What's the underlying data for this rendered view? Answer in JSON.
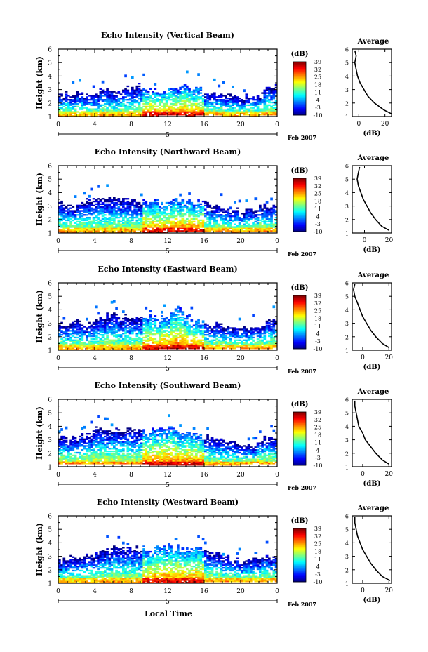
{
  "figure": {
    "xlabel": "Local Time",
    "date_label": "Feb 2007",
    "day_label": "5",
    "ylabel": "Height (km)",
    "colorbar_unit": "(dB)",
    "average_title": "Average",
    "average_xlabel": "(dB)"
  },
  "chart_data": [
    {
      "type": "heatmap",
      "title": "Echo Intensity (Vertical Beam)",
      "xlabel": "",
      "ylabel": "Height (km)",
      "xlim": [
        0,
        24
      ],
      "ylim": [
        1,
        6
      ],
      "x_ticks": [
        "0",
        "4",
        "8",
        "12",
        "16",
        "20",
        "0"
      ],
      "y_ticks": [
        "1",
        "2",
        "3",
        "4",
        "5",
        "6"
      ],
      "colorbar": {
        "label": "(dB)",
        "ticks": [
          "-10",
          "-3",
          "4",
          "11",
          "18",
          "25",
          "32",
          "39"
        ]
      },
      "echo_top_km": [
        2.6,
        2.7,
        2.7,
        2.6,
        2.8,
        3.0,
        2.9,
        3.1,
        3.2,
        3.3,
        3.0,
        2.9,
        3.1,
        3.2,
        3.2,
        3.1,
        2.9,
        2.7,
        2.6,
        2.5,
        2.4,
        2.6,
        2.5,
        3.2
      ],
      "echo_base_km": [
        1.0,
        1.0,
        1.0,
        1.0,
        1.0,
        1.0,
        1.0,
        1.0,
        1.0,
        1.0,
        1.0,
        1.1,
        1.1,
        1.1,
        1.0,
        1.1,
        1.1,
        1.1,
        1.0,
        1.0,
        1.1,
        1.0,
        1.1,
        1.1
      ],
      "average": {
        "title": "Average",
        "xlabel": "(dB)",
        "xlim": [
          -5,
          25
        ],
        "x_ticks": [
          "0",
          "20"
        ],
        "ylim": [
          1,
          6
        ],
        "height_km": [
          1.2,
          1.5,
          2.0,
          2.5,
          3.0,
          3.5,
          4.0,
          4.5,
          5.0,
          5.5,
          5.9
        ],
        "value_db": [
          25,
          19,
          12,
          7,
          4,
          1,
          -1,
          -2,
          -3,
          -2,
          -3
        ]
      }
    },
    {
      "type": "heatmap",
      "title": "Echo Intensity (Northward Beam)",
      "xlabel": "",
      "ylabel": "Height (km)",
      "xlim": [
        0,
        24
      ],
      "ylim": [
        1,
        6
      ],
      "x_ticks": [
        "0",
        "4",
        "8",
        "12",
        "16",
        "20",
        "0"
      ],
      "y_ticks": [
        "1",
        "2",
        "3",
        "4",
        "5",
        "6"
      ],
      "colorbar": {
        "label": "(dB)",
        "ticks": [
          "-10",
          "-3",
          "4",
          "11",
          "18",
          "25",
          "32",
          "39"
        ]
      },
      "echo_top_km": [
        3.2,
        3.1,
        2.9,
        3.4,
        3.5,
        3.6,
        3.7,
        3.6,
        3.5,
        3.4,
        3.3,
        3.3,
        3.4,
        3.5,
        3.4,
        3.3,
        3.2,
        3.0,
        3.0,
        2.8,
        2.6,
        2.8,
        3.0,
        3.2
      ],
      "echo_base_km": [
        1.0,
        1.0,
        1.0,
        1.0,
        1.0,
        1.0,
        1.0,
        1.0,
        1.0,
        1.0,
        1.0,
        1.0,
        1.1,
        1.1,
        1.1,
        1.1,
        1.1,
        1.1,
        1.1,
        1.0,
        1.1,
        1.1,
        1.1,
        1.1
      ],
      "average": {
        "title": "Average",
        "xlabel": "(dB)",
        "xlim": [
          -10,
          22
        ],
        "x_ticks": [
          "0",
          "20"
        ],
        "ylim": [
          1,
          6
        ],
        "height_km": [
          1.2,
          1.5,
          2.0,
          2.5,
          3.0,
          3.5,
          4.0,
          4.5,
          5.0,
          5.5,
          5.9
        ],
        "value_db": [
          20,
          14,
          9,
          5,
          2,
          -1,
          -3,
          -5,
          -6,
          -5,
          -4
        ]
      }
    },
    {
      "type": "heatmap",
      "title": "Echo Intensity (Eastward Beam)",
      "xlabel": "",
      "ylabel": "Height (km)",
      "xlim": [
        0,
        24
      ],
      "ylim": [
        1,
        6
      ],
      "x_ticks": [
        "0",
        "4",
        "8",
        "12",
        "16",
        "20",
        "0"
      ],
      "y_ticks": [
        "1",
        "2",
        "3",
        "4",
        "5",
        "6"
      ],
      "colorbar": {
        "label": "(dB)",
        "ticks": [
          "-10",
          "-3",
          "4",
          "11",
          "18",
          "25",
          "32",
          "39"
        ]
      },
      "echo_top_km": [
        2.8,
        3.0,
        3.1,
        2.9,
        3.2,
        3.5,
        3.6,
        3.5,
        3.4,
        3.6,
        3.5,
        3.3,
        3.6,
        4.3,
        3.4,
        3.1,
        3.0,
        2.9,
        2.8,
        2.7,
        2.6,
        2.7,
        2.9,
        3.1
      ],
      "echo_base_km": [
        1.0,
        1.0,
        1.0,
        1.0,
        1.0,
        1.0,
        1.0,
        1.0,
        1.0,
        1.0,
        1.0,
        1.1,
        1.1,
        1.1,
        1.1,
        1.1,
        1.1,
        1.1,
        1.1,
        1.1,
        1.1,
        1.1,
        1.1,
        1.1
      ],
      "average": {
        "title": "Average",
        "xlabel": "(dB)",
        "xlim": [
          -8,
          22
        ],
        "x_ticks": [
          "0",
          "20"
        ],
        "ylim": [
          1,
          6
        ],
        "height_km": [
          1.2,
          1.5,
          2.0,
          2.5,
          3.0,
          3.5,
          4.0,
          4.5,
          5.0,
          5.5,
          5.9
        ],
        "value_db": [
          20,
          15,
          10,
          6,
          3,
          0,
          -2,
          -4,
          -6,
          -7,
          -6
        ]
      }
    },
    {
      "type": "heatmap",
      "title": "Echo Intensity (Southward Beam)",
      "xlabel": "",
      "ylabel": "Height (km)",
      "xlim": [
        0,
        24
      ],
      "ylim": [
        1,
        6
      ],
      "x_ticks": [
        "0",
        "4",
        "8",
        "12",
        "16",
        "20",
        "0"
      ],
      "y_ticks": [
        "1",
        "2",
        "3",
        "4",
        "5",
        "6"
      ],
      "colorbar": {
        "label": "(dB)",
        "ticks": [
          "-10",
          "-3",
          "4",
          "11",
          "18",
          "25",
          "32",
          "39"
        ]
      },
      "echo_top_km": [
        3.0,
        3.1,
        3.2,
        3.4,
        3.8,
        3.8,
        3.7,
        3.8,
        3.7,
        3.6,
        3.6,
        3.8,
        3.9,
        3.7,
        3.5,
        3.4,
        3.3,
        3.1,
        2.8,
        2.7,
        2.6,
        2.5,
        2.9,
        3.2
      ],
      "echo_base_km": [
        1.2,
        1.2,
        1.2,
        1.2,
        1.2,
        1.2,
        1.2,
        1.2,
        1.2,
        1.2,
        1.1,
        1.1,
        1.1,
        1.1,
        1.1,
        1.1,
        1.1,
        1.1,
        1.1,
        1.1,
        1.2,
        1.2,
        1.2,
        1.2
      ],
      "average": {
        "title": "Average",
        "xlabel": "(dB)",
        "xlim": [
          -8,
          22
        ],
        "x_ticks": [
          "0",
          "20"
        ],
        "ylim": [
          1,
          6
        ],
        "height_km": [
          1.2,
          1.5,
          2.0,
          2.5,
          3.0,
          3.5,
          4.0,
          4.5,
          5.0,
          5.5,
          5.9
        ],
        "value_db": [
          20,
          15,
          10,
          6,
          2,
          0,
          -3,
          -4,
          -5,
          -6,
          -6
        ]
      }
    },
    {
      "type": "heatmap",
      "title": "Echo Intensity (Westward Beam)",
      "xlabel": "Local Time",
      "ylabel": "Height (km)",
      "xlim": [
        0,
        24
      ],
      "ylim": [
        1,
        6
      ],
      "x_ticks": [
        "0",
        "4",
        "8",
        "12",
        "16",
        "20",
        "0"
      ],
      "y_ticks": [
        "1",
        "2",
        "3",
        "4",
        "5",
        "6"
      ],
      "colorbar": {
        "label": "(dB)",
        "ticks": [
          "-10",
          "-3",
          "4",
          "11",
          "18",
          "25",
          "32",
          "39"
        ]
      },
      "echo_top_km": [
        2.7,
        2.8,
        3.0,
        3.1,
        3.2,
        3.5,
        3.6,
        3.7,
        3.6,
        3.6,
        3.5,
        3.6,
        3.8,
        3.7,
        3.5,
        3.6,
        3.4,
        3.2,
        3.0,
        2.8,
        2.6,
        2.7,
        2.9,
        3.0
      ],
      "echo_base_km": [
        1.0,
        1.0,
        1.0,
        1.0,
        1.0,
        1.0,
        1.0,
        1.0,
        1.0,
        1.0,
        1.0,
        1.0,
        1.0,
        1.0,
        1.0,
        1.0,
        1.1,
        1.1,
        1.1,
        1.1,
        1.1,
        1.1,
        1.1,
        1.1
      ],
      "average": {
        "title": "Average",
        "xlabel": "(dB)",
        "xlim": [
          -8,
          22
        ],
        "x_ticks": [
          "0",
          "20"
        ],
        "ylim": [
          1,
          6
        ],
        "height_km": [
          1.2,
          1.5,
          2.0,
          2.5,
          3.0,
          3.5,
          4.0,
          4.5,
          5.0,
          5.5,
          5.9
        ],
        "value_db": [
          21,
          15,
          10,
          6,
          3,
          0,
          -2,
          -4,
          -5,
          -6,
          -6
        ]
      }
    }
  ]
}
